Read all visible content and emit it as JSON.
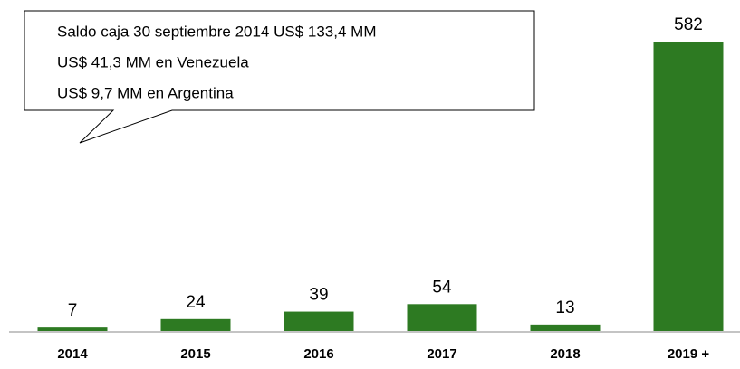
{
  "chart_data": {
    "type": "bar",
    "categories": [
      "2014",
      "2015",
      "2016",
      "2017",
      "2018",
      "2019 +"
    ],
    "values": [
      7,
      24,
      39,
      54,
      13,
      582
    ],
    "color": "#2d7a22",
    "annotation": [
      "Saldo caja  30 septiembre 2014 US$ 133,4 MM",
      "US$ 41,3 MM en Venezuela",
      "US$ 9,7 MM en Argentina"
    ]
  }
}
